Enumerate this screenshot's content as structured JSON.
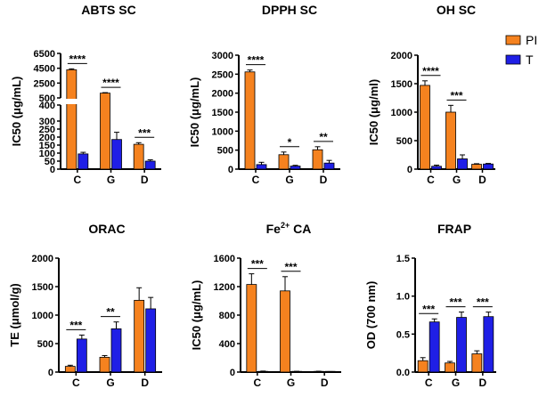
{
  "legend": {
    "position": "top-right",
    "items": [
      {
        "label": "PI",
        "color": "#F5821F"
      },
      {
        "label": "T",
        "color": "#1F1FE6"
      }
    ]
  },
  "chart_data": [
    {
      "type": "bar",
      "title": "ABTS SC",
      "ylabel": "IC50 (μg/mL)",
      "categories": [
        "C",
        "G",
        "D"
      ],
      "axis_break": {
        "lower_range": [
          0,
          400
        ],
        "upper_range": [
          500,
          6500
        ]
      },
      "yticks": [
        0,
        50,
        100,
        150,
        200,
        250,
        300,
        400,
        500,
        2500,
        4500,
        6500
      ],
      "series": [
        {
          "name": "PI",
          "values": [
            4300,
            1150,
            155
          ],
          "errors": [
            120,
            60,
            10
          ]
        },
        {
          "name": "T",
          "values": [
            95,
            185,
            50
          ],
          "errors": [
            10,
            45,
            8
          ]
        }
      ],
      "significance": [
        "****",
        "****",
        "***"
      ]
    },
    {
      "type": "bar",
      "title": "DPPH SC",
      "ylabel": "IC50 (μg/mL)",
      "categories": [
        "C",
        "G",
        "D"
      ],
      "ylim": [
        0,
        3000
      ],
      "yticks": [
        0,
        500,
        1000,
        1500,
        2000,
        2500,
        3000
      ],
      "series": [
        {
          "name": "PI",
          "values": [
            2560,
            380,
            510
          ],
          "errors": [
            50,
            70,
            80
          ]
        },
        {
          "name": "T",
          "values": [
            120,
            80,
            160
          ],
          "errors": [
            60,
            20,
            70
          ]
        }
      ],
      "significance": [
        "****",
        "*",
        "**"
      ]
    },
    {
      "type": "bar",
      "title": "OH SC",
      "ylabel": "IC50 (μg/ml)",
      "categories": [
        "C",
        "G",
        "D"
      ],
      "ylim": [
        0,
        2000
      ],
      "yticks": [
        0,
        500,
        1000,
        1500,
        2000
      ],
      "series": [
        {
          "name": "PI",
          "values": [
            1470,
            1000,
            85
          ],
          "errors": [
            80,
            120,
            10
          ]
        },
        {
          "name": "T",
          "values": [
            50,
            180,
            90
          ],
          "errors": [
            20,
            70,
            10
          ]
        }
      ],
      "significance": [
        "****",
        "***",
        ""
      ]
    },
    {
      "type": "bar",
      "title": "ORAC",
      "ylabel": "TE (μmol/g)",
      "categories": [
        "C",
        "G",
        "D"
      ],
      "ylim": [
        0,
        2000
      ],
      "yticks": [
        0,
        500,
        1000,
        1500,
        2000
      ],
      "series": [
        {
          "name": "PI",
          "values": [
            100,
            260,
            1260
          ],
          "errors": [
            20,
            30,
            220
          ]
        },
        {
          "name": "T",
          "values": [
            580,
            760,
            1110
          ],
          "errors": [
            70,
            120,
            200
          ]
        }
      ],
      "significance": [
        "***",
        "**",
        ""
      ]
    },
    {
      "type": "bar",
      "title": "Fe²⁺ CA",
      "title_parts": [
        "Fe",
        "2+",
        " CA"
      ],
      "ylabel": "IC50 (μg/mL)",
      "categories": [
        "C",
        "G",
        "D"
      ],
      "ylim": [
        0,
        1600
      ],
      "yticks": [
        0,
        400,
        800,
        1200,
        1600
      ],
      "series": [
        {
          "name": "PI",
          "values": [
            1230,
            1140,
            8
          ],
          "errors": [
            150,
            200,
            4
          ]
        },
        {
          "name": "T",
          "values": [
            10,
            8,
            5
          ],
          "errors": [
            4,
            3,
            2
          ]
        }
      ],
      "significance": [
        "***",
        "***",
        ""
      ]
    },
    {
      "type": "bar",
      "title": "FRAP",
      "ylabel": "OD (700 nm)",
      "categories": [
        "C",
        "G",
        "D"
      ],
      "ylim": [
        0,
        1.5
      ],
      "yticks": [
        "0.0",
        "0.5",
        "1.0",
        "1.5"
      ],
      "series": [
        {
          "name": "PI",
          "values": [
            0.15,
            0.12,
            0.24
          ],
          "errors": [
            0.04,
            0.02,
            0.04
          ]
        },
        {
          "name": "T",
          "values": [
            0.66,
            0.72,
            0.73
          ],
          "errors": [
            0.04,
            0.07,
            0.06
          ]
        }
      ],
      "significance": [
        "***",
        "***",
        "***"
      ]
    }
  ]
}
